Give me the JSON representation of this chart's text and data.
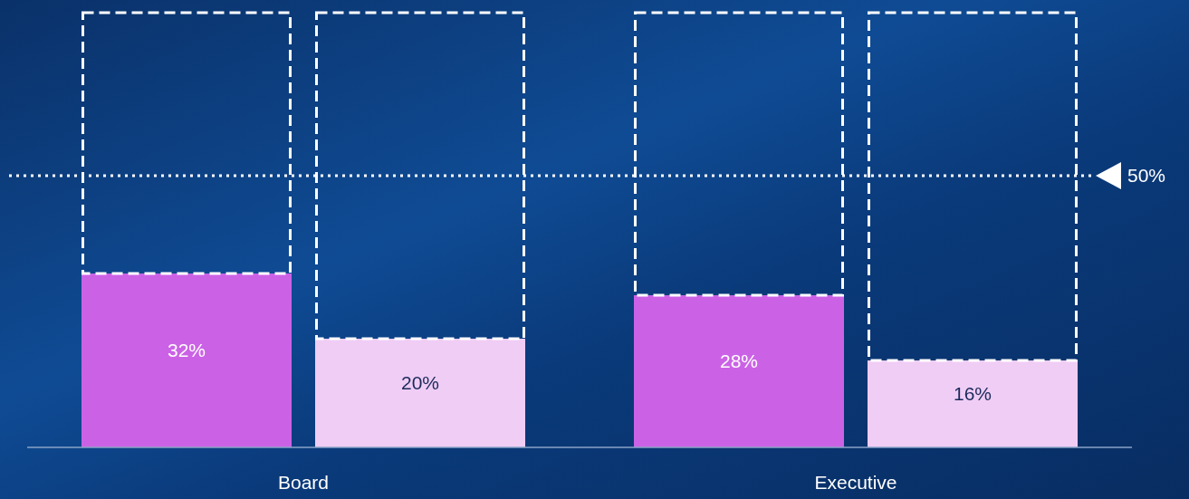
{
  "chart_data": {
    "type": "bar",
    "categories": [
      "Board",
      "Executive"
    ],
    "series": [
      {
        "color": "#cb62e6",
        "values": [
          32,
          28
        ],
        "value_labels": [
          "32%",
          "28%"
        ]
      },
      {
        "color": "#f0cdf5",
        "values": [
          20,
          16
        ],
        "value_labels": [
          "20%",
          "16%"
        ]
      }
    ],
    "ylim": [
      0,
      80
    ],
    "tick_labels": "x",
    "grid": false,
    "ref_lines": [
      {
        "axis": "y",
        "value": 50,
        "label": "50%",
        "line_style": "dotted",
        "color": "#ffffff"
      }
    ]
  }
}
